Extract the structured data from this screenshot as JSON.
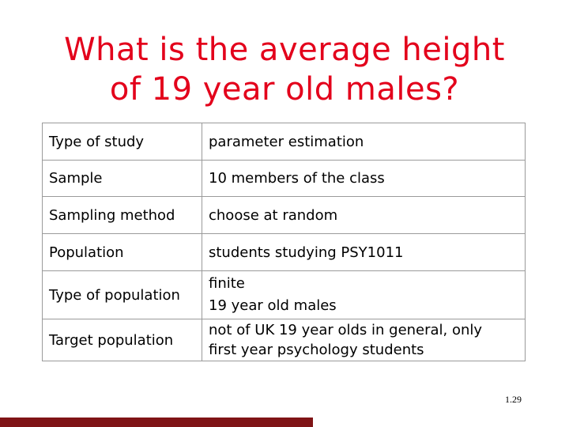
{
  "title": {
    "line1": "What is the average height",
    "line2": "of 19 year old males?"
  },
  "table": {
    "rows": [
      {
        "label": "Type of study",
        "value": [
          "parameter estimation"
        ]
      },
      {
        "label": "Sample",
        "value": [
          "10 members of the class"
        ]
      },
      {
        "label": "Sampling method",
        "value": [
          "choose at random"
        ]
      },
      {
        "label": "Population",
        "value": [
          "students studying PSY1011"
        ]
      },
      {
        "label": "Type of population",
        "value": [
          "finite",
          "19 year old males"
        ]
      },
      {
        "label": "Target population",
        "value": [
          "not of UK 19 year olds in general, only",
          "first year psychology students"
        ]
      }
    ]
  },
  "page_number": "1.29",
  "colors": {
    "title": "#e3001b",
    "footer_bar": "#7f1416"
  }
}
